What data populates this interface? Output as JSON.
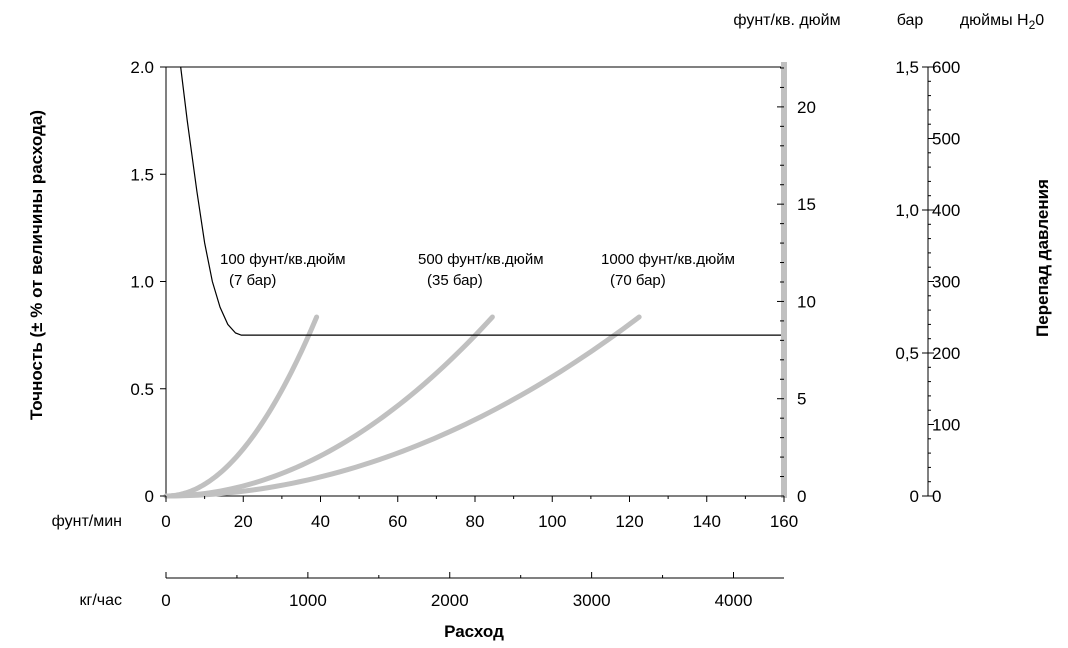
{
  "chart_data": {
    "type": "line",
    "x_axis": {
      "title": "Расход",
      "primary": {
        "unit": "фунт/мин",
        "range": [
          0,
          160
        ],
        "ticks": [
          0,
          20,
          40,
          60,
          80,
          100,
          120,
          140,
          160
        ],
        "tick_labels": [
          "0",
          "20",
          "40",
          "60",
          "80",
          "100",
          "120",
          "140",
          "160"
        ]
      },
      "secondary": {
        "unit": "кг/час",
        "ticks": [
          0,
          1000,
          2000,
          3000,
          4000
        ],
        "tick_labels": [
          "0",
          "1000",
          "2000",
          "3000",
          "4000"
        ],
        "range": [
          0,
          4356
        ]
      }
    },
    "y_left": {
      "title": "Точность (± % от величины  расхода)",
      "range": [
        0,
        2.0
      ],
      "ticks": [
        0,
        0.5,
        1.0,
        1.5,
        2.0
      ],
      "tick_labels": [
        "0",
        "0.5",
        "1.0",
        "1.5",
        "2.0"
      ]
    },
    "y_right_psi": {
      "unit": "фунт/кв. дюйм",
      "range": [
        0,
        22.05
      ],
      "ticks": [
        0,
        5,
        10,
        15,
        20
      ],
      "tick_labels": [
        "0",
        "5",
        "10",
        "15",
        "20"
      ]
    },
    "y_right_bar": {
      "unit": "бар",
      "range": [
        0,
        1.5
      ],
      "ticks": [
        0,
        0.5,
        1.0,
        1.5
      ],
      "tick_labels": [
        "0",
        "0,5",
        "1,0",
        "1,5"
      ]
    },
    "y_right_h2o": {
      "unit": "дюймы H",
      "unit_sub": "2",
      "unit_tail": "0",
      "range": [
        0,
        600
      ],
      "ticks": [
        0,
        100,
        200,
        300,
        400,
        500,
        600
      ],
      "tick_labels": [
        "0",
        "100",
        "200",
        "300",
        "400",
        "500",
        "600"
      ]
    },
    "right_axis_title": "Перепад давления",
    "accuracy_curve": {
      "axis": "left",
      "points": [
        [
          3.8,
          2.0
        ],
        [
          5.5,
          1.75
        ],
        [
          8,
          1.42
        ],
        [
          10,
          1.18
        ],
        [
          12,
          1.0
        ],
        [
          14,
          0.88
        ],
        [
          16,
          0.8
        ],
        [
          18,
          0.76
        ],
        [
          19.5,
          0.75
        ],
        [
          40,
          0.75
        ],
        [
          80,
          0.75
        ],
        [
          120,
          0.75
        ],
        [
          160,
          0.75
        ]
      ]
    },
    "series": [
      {
        "name": "100 фунт/кв.дюйм",
        "name_sub": "(7 бар)",
        "axis": "psi",
        "x_max": 39,
        "y_max": 9.2,
        "exponent": 2
      },
      {
        "name": "500 фунт/кв.дюйм",
        "name_sub": "(35 бар)",
        "axis": "psi",
        "x_max": 84.5,
        "y_max": 9.2,
        "exponent": 2
      },
      {
        "name": "1000 фунт/кв.дюйм",
        "name_sub": "(70 бар)",
        "axis": "psi",
        "x_max": 122.5,
        "y_max": 9.2,
        "exponent": 2
      }
    ],
    "colors": {
      "accuracy": "#000000",
      "pressure_series": "#c0c0c0",
      "right_axis_bar": "#c0c0c0"
    }
  }
}
